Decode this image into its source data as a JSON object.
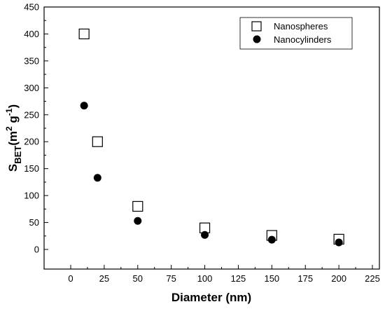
{
  "chart_data": {
    "type": "scatter",
    "title": "",
    "xlabel": "Diameter (nm)",
    "ylabel": {
      "main": "S",
      "sub": "BET",
      "rest": "(m",
      "sup2": "2",
      "g": " g",
      "supneg": "-1",
      "close": ")"
    },
    "xlim": [
      0,
      225
    ],
    "ylim": [
      0,
      450
    ],
    "xticks": [
      "0",
      "25",
      "50",
      "75",
      "100",
      "125",
      "150",
      "175",
      "200",
      "225"
    ],
    "yticks": [
      "0",
      "50",
      "100",
      "150",
      "200",
      "250",
      "300",
      "350",
      "400",
      "450"
    ],
    "grid": false,
    "legend_position": "top-right",
    "series": [
      {
        "name": "Nanospheres",
        "marker": "open-square",
        "color": "#000000",
        "x": [
          10,
          20,
          50,
          100,
          150,
          200
        ],
        "y": [
          400,
          200,
          80,
          40,
          26,
          19
        ]
      },
      {
        "name": "Nanocylinders",
        "marker": "filled-circle",
        "color": "#000000",
        "x": [
          10,
          20,
          50,
          100,
          150,
          200
        ],
        "y": [
          267,
          133,
          53,
          27,
          18,
          13
        ]
      }
    ]
  }
}
